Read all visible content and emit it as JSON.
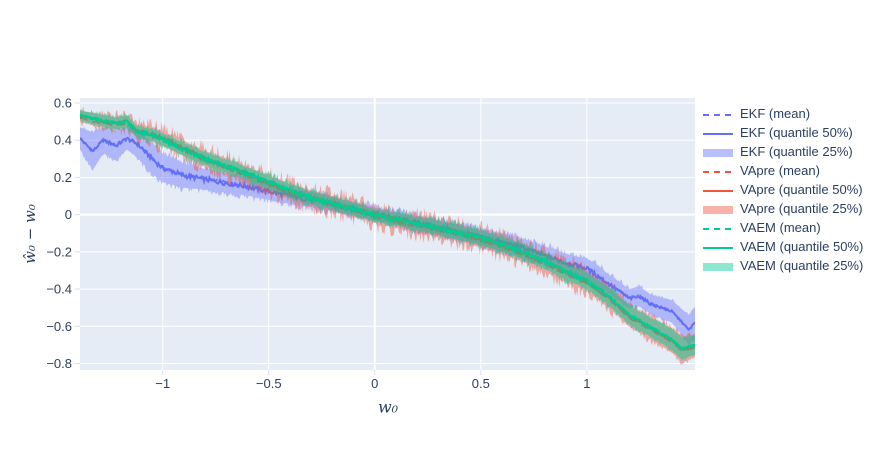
{
  "figure": {
    "background": "#ffffff",
    "plot_bg": "#e5ecf6",
    "grid_color": "#ffffff",
    "font_color": "#2a3f5f",
    "tick_mark_color": "#d8dee9",
    "xlabel": "w₀",
    "ylabel": "ŵ₀ − w₀",
    "x_ticks": [
      {
        "value": -1,
        "label": "−1"
      },
      {
        "value": -0.5,
        "label": "−0.5"
      },
      {
        "value": 0,
        "label": "0"
      },
      {
        "value": 0.5,
        "label": "0.5"
      },
      {
        "value": 1,
        "label": "1"
      }
    ],
    "y_ticks": [
      {
        "value": 0.6,
        "label": "0.6"
      },
      {
        "value": 0.4,
        "label": "0.4"
      },
      {
        "value": 0.2,
        "label": "0.2"
      },
      {
        "value": 0,
        "label": "0"
      },
      {
        "value": -0.2,
        "label": "−0.2"
      },
      {
        "value": -0.4,
        "label": "−0.4"
      },
      {
        "value": -0.6,
        "label": "−0.6"
      },
      {
        "value": -0.8,
        "label": "−0.8"
      }
    ]
  },
  "chart_data": {
    "type": "line",
    "title": "",
    "xlabel": "w_0",
    "ylabel": "hat(w)_0 - w_0",
    "x_range": [
      -1.39,
      1.51
    ],
    "y_range": [
      -0.835,
      0.627
    ],
    "grid": true,
    "legend_position": "right-outside",
    "legend": [
      {
        "label": "EKF (mean)",
        "style": "dashed",
        "color": "#636EFA"
      },
      {
        "label": "EKF (quantile 50%)",
        "style": "solid",
        "color": "#636EFA"
      },
      {
        "label": "EKF (quantile 25%)",
        "style": "band",
        "color": "#636EFA"
      },
      {
        "label": "VApre (mean)",
        "style": "dashed",
        "color": "#EF553B"
      },
      {
        "label": "VApre (quantile 50%)",
        "style": "solid",
        "color": "#EF553B"
      },
      {
        "label": "VApre (quantile 25%)",
        "style": "band",
        "color": "#EF553B"
      },
      {
        "label": "VAEM (mean)",
        "style": "dashed",
        "color": "#00CC96"
      },
      {
        "label": "VAEM (quantile 50%)",
        "style": "solid",
        "color": "#00CC96"
      },
      {
        "label": "VAEM (quantile 25%)",
        "style": "band",
        "color": "#00CC96"
      }
    ],
    "series": [
      {
        "name": "EKF",
        "color": "#636EFA",
        "band_alpha": 0.42,
        "mean_offset": 0.004,
        "line_jitter": 0.013,
        "band_jitter": 0.028,
        "x": [
          -1.39,
          -1.33,
          -1.28,
          -1.22,
          -1.17,
          -1.12,
          -1.05,
          -1.0,
          -0.9,
          -0.8,
          -0.7,
          -0.6,
          -0.5,
          -0.4,
          -0.3,
          -0.2,
          -0.1,
          0.0,
          0.1,
          0.2,
          0.3,
          0.4,
          0.5,
          0.6,
          0.7,
          0.8,
          0.9,
          1.0,
          1.05,
          1.1,
          1.2,
          1.25,
          1.3,
          1.4,
          1.45,
          1.48,
          1.51
        ],
        "median": [
          0.41,
          0.34,
          0.4,
          0.37,
          0.41,
          0.38,
          0.3,
          0.25,
          0.21,
          0.19,
          0.17,
          0.15,
          0.125,
          0.1,
          0.08,
          0.055,
          0.03,
          0.005,
          -0.02,
          -0.045,
          -0.07,
          -0.095,
          -0.12,
          -0.15,
          -0.18,
          -0.22,
          -0.26,
          -0.29,
          -0.33,
          -0.37,
          -0.45,
          -0.44,
          -0.48,
          -0.52,
          -0.58,
          -0.62,
          -0.58
        ],
        "band_halfwidth": [
          0.06,
          0.1,
          0.07,
          0.08,
          0.06,
          0.07,
          0.08,
          0.075,
          0.065,
          0.055,
          0.05,
          0.047,
          0.045,
          0.042,
          0.04,
          0.038,
          0.036,
          0.035,
          0.036,
          0.038,
          0.04,
          0.042,
          0.044,
          0.047,
          0.05,
          0.05,
          0.05,
          0.052,
          0.06,
          0.05,
          0.05,
          0.055,
          0.05,
          0.06,
          0.07,
          0.08,
          0.085
        ]
      },
      {
        "name": "VApre",
        "color": "#EF553B",
        "band_alpha": 0.45,
        "mean_offset": -0.01,
        "line_jitter": 0.012,
        "band_jitter": 0.055,
        "x": [
          -1.39,
          -1.3,
          -1.22,
          -1.17,
          -1.12,
          -1.05,
          -1.0,
          -0.9,
          -0.8,
          -0.7,
          -0.6,
          -0.5,
          -0.4,
          -0.3,
          -0.2,
          -0.1,
          0.0,
          0.1,
          0.2,
          0.3,
          0.4,
          0.5,
          0.6,
          0.7,
          0.8,
          0.9,
          1.0,
          1.1,
          1.2,
          1.3,
          1.4,
          1.45,
          1.51
        ],
        "median": [
          0.53,
          0.505,
          0.49,
          0.5,
          0.45,
          0.43,
          0.41,
          0.355,
          0.3,
          0.26,
          0.215,
          0.17,
          0.125,
          0.09,
          0.06,
          0.03,
          -0.005,
          -0.03,
          -0.05,
          -0.075,
          -0.1,
          -0.13,
          -0.165,
          -0.205,
          -0.255,
          -0.31,
          -0.36,
          -0.44,
          -0.545,
          -0.61,
          -0.675,
          -0.725,
          -0.705
        ],
        "band_halfwidth": [
          0.03,
          0.035,
          0.035,
          0.035,
          0.035,
          0.037,
          0.04,
          0.04,
          0.042,
          0.042,
          0.042,
          0.042,
          0.042,
          0.04,
          0.04,
          0.04,
          0.04,
          0.04,
          0.042,
          0.042,
          0.044,
          0.046,
          0.048,
          0.048,
          0.05,
          0.05,
          0.052,
          0.055,
          0.058,
          0.06,
          0.065,
          0.07,
          0.06
        ]
      },
      {
        "name": "VAEM",
        "color": "#00CC96",
        "band_alpha": 0.5,
        "mean_offset": 0.004,
        "line_jitter": 0.012,
        "band_jitter": 0.03,
        "x": [
          -1.39,
          -1.3,
          -1.22,
          -1.17,
          -1.12,
          -1.05,
          -1.0,
          -0.9,
          -0.8,
          -0.7,
          -0.6,
          -0.5,
          -0.4,
          -0.3,
          -0.2,
          -0.1,
          0.0,
          0.1,
          0.2,
          0.3,
          0.4,
          0.5,
          0.6,
          0.7,
          0.8,
          0.9,
          1.0,
          1.1,
          1.2,
          1.3,
          1.4,
          1.45,
          1.51
        ],
        "median": [
          0.535,
          0.51,
          0.49,
          0.5,
          0.445,
          0.43,
          0.405,
          0.35,
          0.3,
          0.26,
          0.22,
          0.175,
          0.13,
          0.09,
          0.06,
          0.03,
          -0.005,
          -0.025,
          -0.05,
          -0.07,
          -0.1,
          -0.125,
          -0.16,
          -0.2,
          -0.25,
          -0.305,
          -0.355,
          -0.435,
          -0.54,
          -0.605,
          -0.67,
          -0.72,
          -0.7
        ],
        "band_halfwidth": [
          0.025,
          0.03,
          0.03,
          0.03,
          0.03,
          0.03,
          0.033,
          0.033,
          0.033,
          0.033,
          0.033,
          0.033,
          0.033,
          0.032,
          0.032,
          0.032,
          0.032,
          0.032,
          0.033,
          0.034,
          0.035,
          0.036,
          0.038,
          0.04,
          0.04,
          0.042,
          0.044,
          0.046,
          0.05,
          0.05,
          0.055,
          0.06,
          0.05
        ]
      }
    ]
  }
}
